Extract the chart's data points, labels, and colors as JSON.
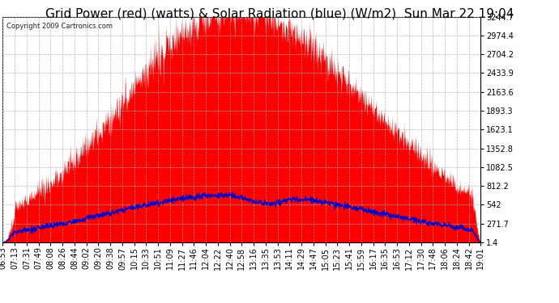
{
  "title": "Grid Power (red) (watts) & Solar Radiation (blue) (W/m2)  Sun Mar 22 19:04",
  "copyright": "Copyright 2009 Cartronics.com",
  "yticks": [
    1.4,
    271.7,
    542.0,
    812.2,
    1082.5,
    1352.8,
    1623.1,
    1893.3,
    2163.6,
    2433.9,
    2704.2,
    2974.4,
    3244.7
  ],
  "ymax": 3244.7,
  "ymin": 1.4,
  "xtick_labels": [
    "06:53",
    "07:13",
    "07:31",
    "07:49",
    "08:08",
    "08:26",
    "08:44",
    "09:02",
    "09:20",
    "09:38",
    "09:57",
    "10:15",
    "10:33",
    "10:51",
    "11:09",
    "11:27",
    "11:46",
    "12:04",
    "12:22",
    "12:40",
    "12:58",
    "13:16",
    "13:35",
    "13:53",
    "14:11",
    "14:29",
    "14:47",
    "15:05",
    "15:23",
    "15:41",
    "15:59",
    "16:17",
    "16:35",
    "16:53",
    "17:12",
    "17:30",
    "17:48",
    "18:06",
    "18:24",
    "18:42",
    "19:01"
  ],
  "bg_color": "#ffffff",
  "plot_bg_color": "#ffffff",
  "grid_color": "#b0b0b0",
  "red_color": "#ff0000",
  "blue_color": "#0000cc",
  "title_fontsize": 11,
  "tick_fontsize": 7,
  "copyright_fontsize": 6
}
